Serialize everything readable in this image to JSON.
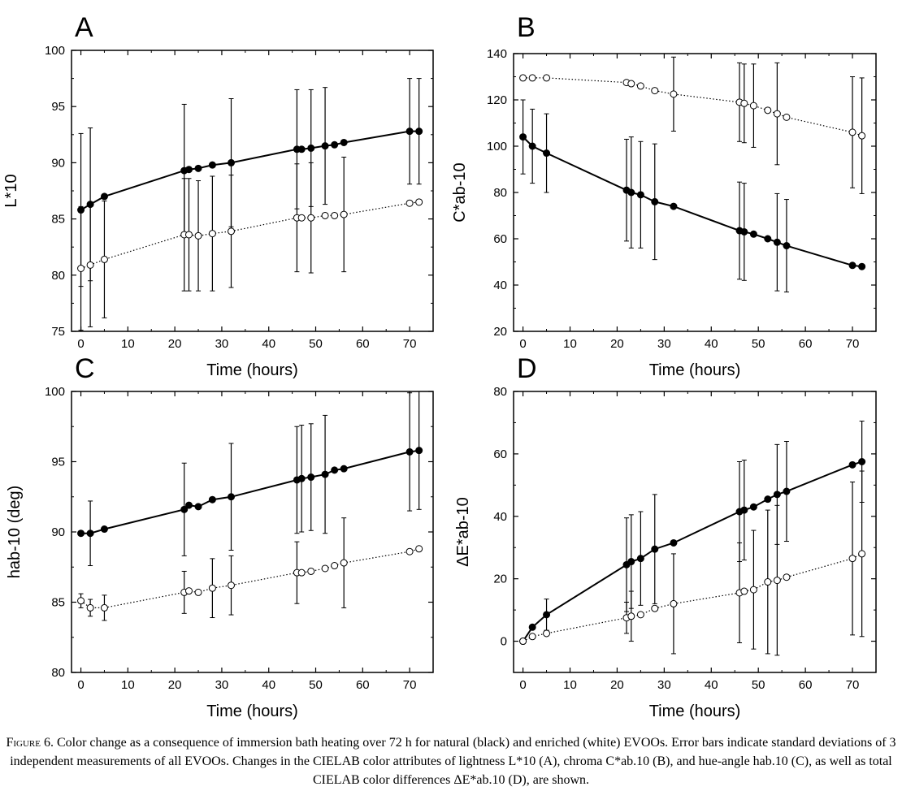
{
  "figure": {
    "caption": {
      "figure_label": "Figure 6.",
      "text": "Color change as a consequence of immersion bath heating over 72 h for natural (black) and enriched (white) EVOOs. Error bars indicate standard deviations of 3 independent measurements of all EVOOs. Changes in the CIELAB color attributes of lightness L*10 (A), chroma C*ab.10 (B), and hue-angle hab.10 (C), as well as total CIELAB color differences ΔE*ab.10 (D), are shown."
    },
    "colors": {
      "natural": "#000000",
      "enriched": "#ffffff",
      "line": "#000000"
    }
  },
  "chart_data": [
    {
      "panel": "A",
      "type": "line",
      "xlabel": "Time (hours)",
      "ylabel": "L*10",
      "xlim": [
        -2,
        75
      ],
      "ylim": [
        75,
        100
      ],
      "xticks": [
        0,
        10,
        20,
        30,
        40,
        50,
        60,
        70
      ],
      "yticks": [
        75,
        80,
        85,
        90,
        95,
        100
      ],
      "x": [
        0,
        2,
        5,
        22,
        23,
        25,
        28,
        32,
        46,
        47,
        49,
        52,
        54,
        56,
        70,
        72
      ],
      "series": [
        {
          "marker": "filled",
          "values": [
            85.8,
            86.3,
            87.0,
            89.3,
            89.4,
            89.5,
            89.8,
            90.0,
            91.2,
            91.2,
            91.3,
            91.5,
            91.6,
            91.8,
            92.8,
            92.8
          ],
          "errors": [
            6.8,
            6.8,
            0,
            5.9,
            0,
            0,
            0,
            5.7,
            5.3,
            0,
            5.2,
            5.2,
            0,
            0,
            4.7,
            4.7
          ]
        },
        {
          "marker": "open",
          "values": [
            80.6,
            80.9,
            81.4,
            83.6,
            83.6,
            83.5,
            83.7,
            83.9,
            85.1,
            85.1,
            85.1,
            85.3,
            85.3,
            85.4,
            86.4,
            86.5
          ],
          "errors": [
            5.5,
            5.5,
            5.2,
            5.0,
            5.0,
            4.9,
            5.1,
            5.0,
            4.8,
            0,
            4.9,
            0,
            0,
            5.1,
            0,
            0
          ]
        }
      ]
    },
    {
      "panel": "B",
      "type": "line",
      "xlabel": "Time (hours)",
      "ylabel": "C*ab-10",
      "xlim": [
        -2,
        75
      ],
      "ylim": [
        20,
        140
      ],
      "xticks": [
        0,
        10,
        20,
        30,
        40,
        50,
        60,
        70
      ],
      "yticks": [
        20,
        40,
        60,
        80,
        100,
        120,
        140
      ],
      "x": [
        0,
        2,
        5,
        22,
        23,
        25,
        28,
        32,
        46,
        47,
        49,
        52,
        54,
        56,
        70,
        72
      ],
      "series": [
        {
          "marker": "filled",
          "values": [
            104,
            100,
            97,
            81,
            80,
            79,
            76,
            74,
            63.5,
            63,
            62,
            60,
            58.5,
            57,
            48.5,
            48
          ],
          "errors": [
            16,
            16,
            17,
            22,
            24,
            23,
            25,
            0,
            21,
            21,
            0,
            0,
            21,
            20,
            0,
            0
          ]
        },
        {
          "marker": "open",
          "values": [
            129.5,
            129.5,
            129.5,
            127.5,
            127,
            126,
            124,
            122.5,
            119,
            118.5,
            117.5,
            115.5,
            114,
            112.5,
            106,
            104.5
          ],
          "errors": [
            0,
            0,
            0,
            0,
            0,
            0,
            0,
            16,
            17,
            17,
            18,
            0,
            22,
            0,
            24,
            25
          ]
        }
      ]
    },
    {
      "panel": "C",
      "type": "line",
      "xlabel": "Time (hours)",
      "ylabel": "hab-10 (deg)",
      "xlim": [
        -2,
        75
      ],
      "ylim": [
        80,
        100
      ],
      "xticks": [
        0,
        10,
        20,
        30,
        40,
        50,
        60,
        70
      ],
      "yticks": [
        80,
        85,
        90,
        95,
        100
      ],
      "x": [
        0,
        2,
        5,
        22,
        23,
        25,
        28,
        32,
        46,
        47,
        49,
        52,
        54,
        56,
        70,
        72
      ],
      "series": [
        {
          "marker": "filled",
          "values": [
            89.9,
            89.9,
            90.2,
            91.6,
            91.9,
            91.8,
            92.3,
            92.5,
            93.7,
            93.8,
            93.9,
            94.1,
            94.4,
            94.5,
            95.7,
            95.8
          ],
          "errors": [
            0,
            2.3,
            0,
            3.3,
            0,
            0,
            0,
            3.8,
            3.8,
            3.8,
            3.8,
            4.2,
            0,
            0,
            4.2,
            4.2
          ]
        },
        {
          "marker": "open",
          "values": [
            85.1,
            84.6,
            84.6,
            85.7,
            85.8,
            85.7,
            86.0,
            86.2,
            87.1,
            87.1,
            87.2,
            87.4,
            87.6,
            87.8,
            88.6,
            88.8
          ],
          "errors": [
            0.5,
            0.6,
            0.9,
            1.5,
            0,
            0,
            2.1,
            2.1,
            2.2,
            0,
            0,
            0,
            0,
            3.2,
            0,
            0
          ]
        }
      ]
    },
    {
      "panel": "D",
      "type": "line",
      "xlabel": "Time (hours)",
      "ylabel": "ΔE*ab-10",
      "xlim": [
        -2,
        75
      ],
      "ylim": [
        -10,
        80
      ],
      "xticks": [
        0,
        10,
        20,
        30,
        40,
        50,
        60,
        70
      ],
      "yticks": [
        0,
        20,
        40,
        60,
        80
      ],
      "x": [
        0,
        2,
        5,
        22,
        23,
        25,
        28,
        32,
        46,
        47,
        49,
        52,
        54,
        56,
        70,
        72
      ],
      "series": [
        {
          "marker": "filled",
          "values": [
            0,
            4.5,
            8.5,
            24.5,
            25.5,
            26.5,
            29.5,
            31.5,
            41.5,
            42,
            43,
            45.5,
            47,
            48,
            56.5,
            57.5
          ],
          "errors": [
            0,
            0,
            5,
            15,
            15,
            15,
            17.5,
            0,
            16,
            16,
            0,
            0,
            16,
            16,
            0,
            13
          ]
        },
        {
          "marker": "open",
          "values": [
            0,
            1.5,
            2.5,
            7.5,
            8,
            8.5,
            10.5,
            12,
            15.5,
            16,
            16.5,
            19,
            19.5,
            20.5,
            26.5,
            28
          ],
          "errors": [
            0,
            0,
            0,
            5,
            8,
            0,
            0,
            16,
            16,
            0,
            19,
            23,
            24,
            0,
            24.5,
            26.5
          ]
        }
      ]
    }
  ]
}
